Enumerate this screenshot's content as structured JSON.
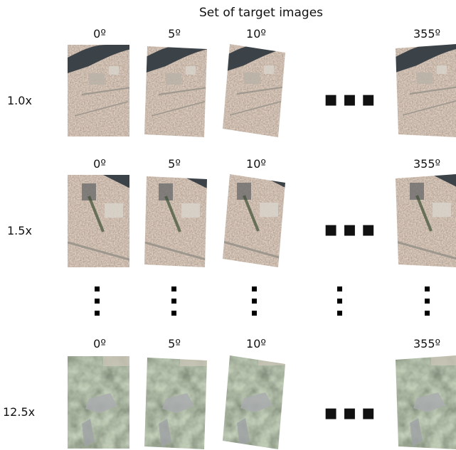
{
  "title": "Set of target images",
  "rows": [
    {
      "scale": "1.0x",
      "angles": [
        "0º",
        "5º",
        "10º",
        "355º"
      ],
      "texture": "city"
    },
    {
      "scale": "1.5x",
      "angles": [
        "0º",
        "5º",
        "10º",
        "355º"
      ],
      "texture": "city"
    },
    {
      "scale": "12.5x",
      "angles": [
        "0º",
        "5º",
        "10º",
        "355º"
      ],
      "texture": "tree"
    }
  ],
  "colors": {
    "city_base": "#8c7766",
    "tree_base": "#5b6650",
    "river": "#3b4248"
  }
}
